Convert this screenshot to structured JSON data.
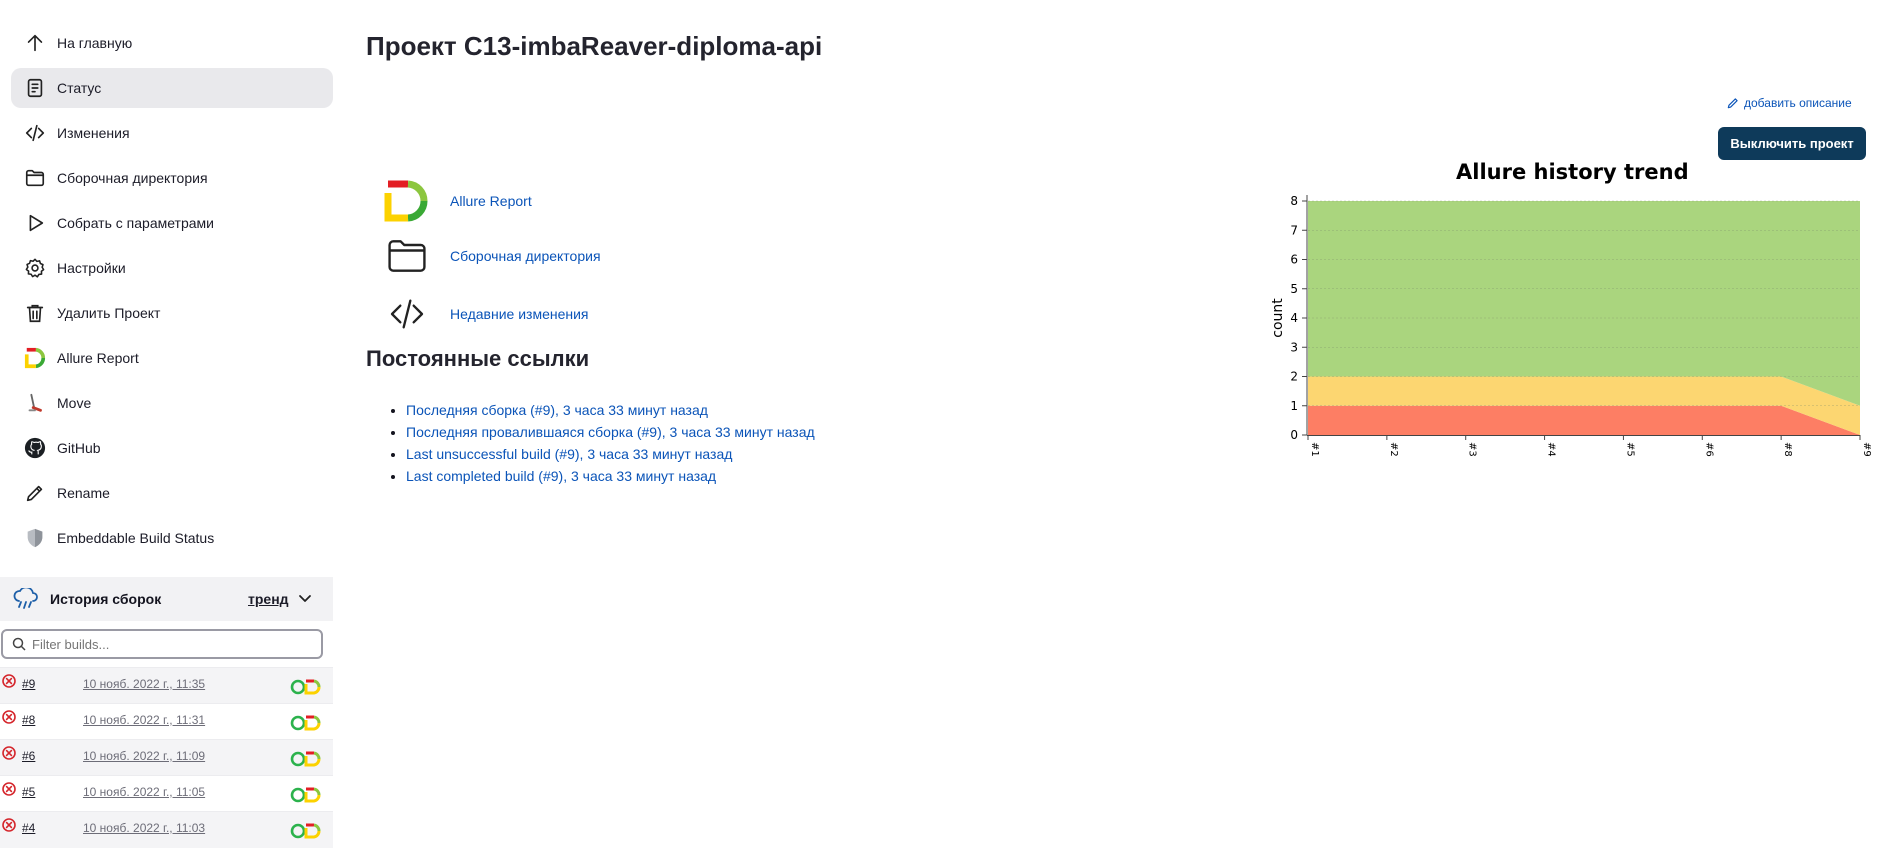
{
  "sidebar": {
    "items": [
      {
        "label": "На главную",
        "icon": "arrow-up-icon"
      },
      {
        "label": "Статус",
        "icon": "document-icon"
      },
      {
        "label": "Изменения",
        "icon": "code-icon"
      },
      {
        "label": "Сборочная директория",
        "icon": "folder-icon"
      },
      {
        "label": "Собрать с параметрами",
        "icon": "play-icon"
      },
      {
        "label": "Настройки",
        "icon": "gear-icon"
      },
      {
        "label": "Удалить Проект",
        "icon": "trash-icon"
      },
      {
        "label": "Allure Report",
        "icon": "allure-logo-icon"
      },
      {
        "label": "Move",
        "icon": "move-icon"
      },
      {
        "label": "GitHub",
        "icon": "github-icon"
      },
      {
        "label": "Rename",
        "icon": "pencil-icon"
      },
      {
        "label": "Embeddable Build Status",
        "icon": "shield-icon"
      }
    ],
    "active_index": 1
  },
  "build_history": {
    "title": "История сборок",
    "trend_link": "тренд",
    "filter_placeholder": "Filter builds...",
    "builds": [
      {
        "number": "#9",
        "date": "10 нояб. 2022 г., 11:35",
        "status": "failed"
      },
      {
        "number": "#8",
        "date": "10 нояб. 2022 г., 11:31",
        "status": "failed"
      },
      {
        "number": "#6",
        "date": "10 нояб. 2022 г., 11:09",
        "status": "failed"
      },
      {
        "number": "#5",
        "date": "10 нояб. 2022 г., 11:05",
        "status": "failed"
      },
      {
        "number": "#4",
        "date": "10 нояб. 2022 г., 11:03",
        "status": "failed"
      }
    ]
  },
  "main": {
    "title": "Проект C13-imbaReaver-diploma-api",
    "add_description": "добавить описание",
    "disable_button": "Выключить проект",
    "links": [
      {
        "label": "Allure Report",
        "icon": "allure-logo-icon"
      },
      {
        "label": "Сборочная директория",
        "icon": "folder-icon"
      },
      {
        "label": "Недавние изменения",
        "icon": "code-icon"
      }
    ],
    "permalinks_title": "Постоянные ссылки",
    "permalinks": [
      "Последняя сборка (#9), 3 часа 33 минут назад",
      "Последняя провалившаяся сборка (#9), 3 часа 33 минут назад",
      "Last unsuccessful build (#9), 3 часа 33 минут назад",
      "Last completed build (#9), 3 часа 33 минут назад"
    ]
  },
  "colors": {
    "accent": "#0b54b8",
    "button_bg": "#0e3a5a",
    "passed": "#aad57e",
    "broken": "#fcd671",
    "failed": "#fd7e64"
  },
  "chart_data": {
    "type": "area",
    "title": "Allure history trend",
    "ylabel": "count",
    "xlabel": "",
    "categories": [
      "#1",
      "#2",
      "#3",
      "#4",
      "#5",
      "#6",
      "#8",
      "#9"
    ],
    "ylim": [
      0,
      8
    ],
    "yticks": [
      0,
      1,
      2,
      3,
      4,
      5,
      6,
      7,
      8
    ],
    "stacked": true,
    "grid": true,
    "series": [
      {
        "key": "failed",
        "values": [
          1,
          1,
          1,
          1,
          1,
          1,
          1,
          0
        ],
        "color": "#fd7e64"
      },
      {
        "key": "broken",
        "values": [
          1,
          1,
          1,
          1,
          1,
          1,
          1,
          1
        ],
        "color": "#fcd671"
      },
      {
        "key": "passed",
        "values": [
          6,
          6,
          6,
          6,
          6,
          6,
          6,
          7
        ],
        "color": "#aad57e"
      }
    ]
  }
}
